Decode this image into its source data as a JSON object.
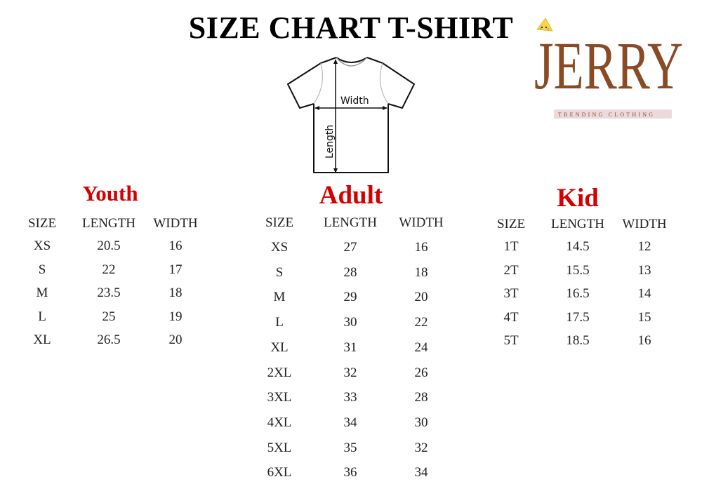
{
  "title": "SIZE CHART T-SHIRT",
  "logo": {
    "name": "JERRY",
    "tagline": "TRENDING CLOTHING",
    "brand_color": "#8a4a24",
    "tagline_bg": "#ecd9dc"
  },
  "diagram": {
    "width_label": "Width",
    "length_label": "Length"
  },
  "accent_color": "#d40000",
  "tables": {
    "youth": {
      "title": "Youth",
      "headers": [
        "SIZE",
        "LENGTH",
        "WIDTH"
      ],
      "rows": [
        [
          "XS",
          "20.5",
          "16"
        ],
        [
          "S",
          "22",
          "17"
        ],
        [
          "M",
          "23.5",
          "18"
        ],
        [
          "L",
          "25",
          "19"
        ],
        [
          "XL",
          "26.5",
          "20"
        ]
      ]
    },
    "adult": {
      "title": "Adult",
      "headers": [
        "SIZE",
        "LENGTH",
        "WIDTH"
      ],
      "rows": [
        [
          "XS",
          "27",
          "16"
        ],
        [
          "S",
          "28",
          "18"
        ],
        [
          "M",
          "29",
          "20"
        ],
        [
          "L",
          "30",
          "22"
        ],
        [
          "XL",
          "31",
          "24"
        ],
        [
          "2XL",
          "32",
          "26"
        ],
        [
          "3XL",
          "33",
          "28"
        ],
        [
          "4XL",
          "34",
          "30"
        ],
        [
          "5XL",
          "35",
          "32"
        ],
        [
          "6XL",
          "36",
          "34"
        ]
      ]
    },
    "kid": {
      "title": "Kid",
      "headers": [
        "SIZE",
        "LENGTH",
        "WIDTH"
      ],
      "rows": [
        [
          "1T",
          "14.5",
          "12"
        ],
        [
          "2T",
          "15.5",
          "13"
        ],
        [
          "3T",
          "16.5",
          "14"
        ],
        [
          "4T",
          "17.5",
          "15"
        ],
        [
          "5T",
          "18.5",
          "16"
        ]
      ]
    }
  }
}
